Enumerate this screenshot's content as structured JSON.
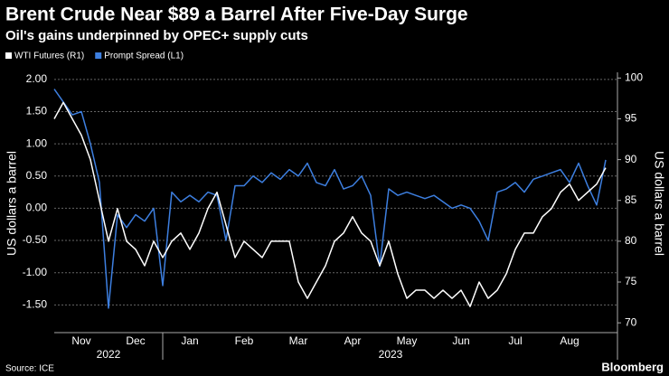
{
  "chart_data": {
    "type": "line",
    "title": "Brent Crude Near $89 a Barrel After Five-Day Surge",
    "subtitle": "Oil's gains underpinned by OPEC+ supply cuts",
    "y_label": "US dollars a barrel",
    "y2_label": "US dollars a barrel",
    "source": "Source: ICE",
    "brand": "Bloomberg",
    "years": [
      "2022",
      "2023"
    ],
    "categories": [
      null,
      null,
      null,
      "Nov",
      null,
      null,
      null,
      null,
      null,
      "Dec",
      null,
      null,
      null,
      null,
      null,
      "Jan",
      null,
      null,
      null,
      null,
      null,
      "Feb",
      null,
      null,
      null,
      null,
      null,
      "Mar",
      null,
      null,
      null,
      null,
      null,
      "Apr",
      null,
      null,
      null,
      null,
      null,
      "May",
      null,
      null,
      null,
      null,
      null,
      "Jun",
      null,
      null,
      null,
      null,
      null,
      "Jul",
      null,
      null,
      null,
      null,
      null,
      "Aug",
      null,
      null,
      null,
      null
    ],
    "series": [
      {
        "name": "WTI Futures (R1)",
        "color": "#ffffff",
        "axis": "y2",
        "values": [
          95,
          97,
          95,
          93,
          90,
          85,
          80,
          84,
          80,
          79,
          77,
          80,
          78,
          80,
          81,
          79,
          81,
          84,
          86,
          82,
          78,
          80,
          79,
          78,
          80,
          80,
          80,
          75,
          73,
          75,
          77,
          80,
          81,
          83,
          81,
          80,
          77,
          80,
          76,
          73,
          74,
          74,
          73,
          74,
          73,
          74,
          72,
          75,
          73,
          74,
          76,
          79,
          81,
          81,
          83,
          84,
          86,
          87,
          85,
          86,
          87,
          89
        ]
      },
      {
        "name": "Prompt Spread (L1)",
        "color": "#3d7fe0",
        "values": [
          1.85,
          1.65,
          1.45,
          1.5,
          1.0,
          0.4,
          -1.55,
          -0.1,
          -0.3,
          -0.1,
          -0.2,
          0.0,
          -1.2,
          0.25,
          0.1,
          0.2,
          0.1,
          0.25,
          0.2,
          -0.5,
          0.35,
          0.35,
          0.5,
          0.4,
          0.55,
          0.45,
          0.6,
          0.5,
          0.7,
          0.4,
          0.35,
          0.6,
          0.3,
          0.35,
          0.5,
          0.2,
          -0.9,
          0.3,
          0.2,
          0.25,
          0.2,
          0.15,
          0.2,
          0.1,
          0.0,
          0.05,
          0.0,
          -0.2,
          -0.5,
          0.25,
          0.3,
          0.4,
          0.25,
          0.45,
          0.5,
          0.55,
          0.6,
          0.4,
          0.7,
          0.35,
          0.05,
          0.75
        ]
      }
    ],
    "ylim": [
      -1.93,
      2.11
    ],
    "yticks": [
      {
        "value": -1.5,
        "label": "-1.50"
      },
      {
        "value": -1,
        "label": "-1.00"
      },
      {
        "value": -0.5,
        "label": "-0.50"
      },
      {
        "value": 0,
        "label": "0.00"
      },
      {
        "value": 0.5,
        "label": "0.50"
      },
      {
        "value": 1,
        "label": "1.00"
      },
      {
        "value": 1.5,
        "label": "1.50"
      },
      {
        "value": 2,
        "label": "2.00"
      }
    ],
    "y2lim": [
      68.8,
      100.7
    ],
    "y2ticks": [
      70,
      75,
      80,
      85,
      90,
      95,
      100
    ],
    "grid": true,
    "legend": "top-left"
  }
}
